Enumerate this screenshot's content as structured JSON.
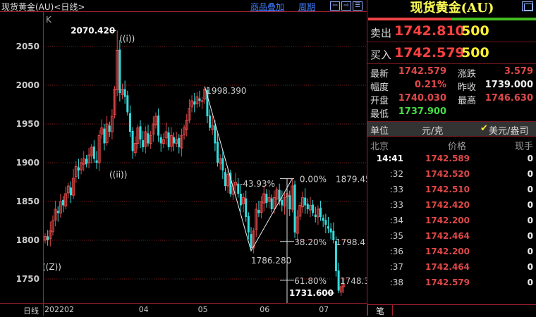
{
  "header": {
    "title": "现货黄金(AU)<日线>",
    "overlay_link": "商品叠加",
    "period_link": "周期",
    "nav_icons": [
      "arrow-left-icon",
      "arrow-right-icon",
      "split-view-icon"
    ]
  },
  "chart_data": {
    "type": "candlestick",
    "indicator_label": "K",
    "yticks": [
      2050,
      2000,
      1950,
      1900,
      1850,
      1800,
      1750
    ],
    "ylim": [
      1722,
      2092
    ],
    "grid": "horizontal dotted",
    "xaxis_label": "日线",
    "xticks": [
      {
        "label": "202202",
        "index": 0
      },
      {
        "label": "04",
        "index": 38
      },
      {
        "label": "05",
        "index": 61
      },
      {
        "label": "06",
        "index": 85
      },
      {
        "label": "07",
        "index": 108
      }
    ],
    "closes": [
      1805,
      1800,
      1812,
      1825,
      1840,
      1835,
      1850,
      1845,
      1860,
      1870,
      1858,
      1880,
      1895,
      1890,
      1900,
      1905,
      1898,
      1910,
      1920,
      1905,
      1900,
      1935,
      1945,
      1925,
      1950,
      1940,
      1960,
      1995,
      2045,
      1990,
      1995,
      1985,
      1965,
      1940,
      1915,
      1925,
      1945,
      1930,
      1920,
      1940,
      1925,
      1935,
      1950,
      1960,
      1935,
      1925,
      1930,
      1940,
      1920,
      1935,
      1925,
      1930,
      1920,
      1935,
      1945,
      1955,
      1970,
      1980,
      1975,
      1985,
      1980,
      1980,
      1995,
      1960,
      1945,
      1948,
      1925,
      1900,
      1905,
      1890,
      1870,
      1885,
      1860,
      1870,
      1875,
      1860,
      1845,
      1855,
      1830,
      1810,
      1790,
      1812,
      1840,
      1835,
      1850,
      1860,
      1848,
      1855,
      1840,
      1855,
      1865,
      1850,
      1845,
      1855,
      1860,
      1840,
      1870,
      1810,
      1830,
      1845,
      1855,
      1845,
      1840,
      1845,
      1835,
      1830,
      1840,
      1830,
      1825,
      1820,
      1815,
      1810,
      1800,
      1760,
      1735,
      1740,
      1743
    ],
    "up_color": "#e04848",
    "down_color": "#33dddd",
    "annotations": {
      "high": {
        "label": "2070.420",
        "value": 2070.42,
        "index": 28
      },
      "wave_i": "((i))",
      "wave_ii": "((ii))",
      "wave_z": "((Z))",
      "swing_high": {
        "label": "1998.390",
        "value": 1998.39,
        "index": 62
      },
      "swing_low": {
        "label": "1786.280",
        "value": 1786.28,
        "index": 80
      },
      "fib_top": {
        "value": 1879.45,
        "index": 96
      },
      "low": {
        "label": "1731.600",
        "value": 1731.6,
        "index": 114
      },
      "retrace_pct": "-43.93%",
      "fib_levels": [
        {
          "pct": "0.00%",
          "price": "1879.45",
          "value": 1879.45
        },
        {
          "pct": "38.20%",
          "price": "1798.4",
          "value": 1798.4
        },
        {
          "pct": "61.80%",
          "price": "1748.3",
          "value": 1748.3
        }
      ]
    }
  },
  "quote": {
    "name": "现货黄金(AU)",
    "buy_ratio": 0.5,
    "ask": {
      "label": "卖出",
      "price": "1742.810",
      "volume": "500"
    },
    "bid": {
      "label": "买入",
      "price": "1742.579",
      "volume": "500"
    },
    "stats": [
      {
        "l1": "最新",
        "v1": "1742.579",
        "c1": "red",
        "l2": "涨跌",
        "v2": "3.579",
        "c2": "red"
      },
      {
        "l1": "幅度",
        "v1": "0.21%",
        "c1": "red",
        "l2": "昨收",
        "v2": "1739.000",
        "c2": "wht"
      },
      {
        "l1": "开盘",
        "v1": "1740.030",
        "c1": "red",
        "l2": "最高",
        "v2": "1746.630",
        "c2": "red"
      },
      {
        "l1": "最低",
        "v1": "1737.900",
        "c1": "grn",
        "l2": "",
        "v2": "",
        "c2": "wht"
      }
    ],
    "unit": {
      "label": "单位",
      "cny": "元/克",
      "usd": "美元/盎司",
      "check": "✔"
    },
    "ticks_header": {
      "time": "北京",
      "price": "价格",
      "vol": "现手"
    },
    "ticks": [
      {
        "t": "14:41",
        "p": "1742.589",
        "v": "0"
      },
      {
        "t": ":32",
        "p": "1742.520",
        "v": "0"
      },
      {
        "t": ":33",
        "p": "1742.510",
        "v": "0"
      },
      {
        "t": ":33",
        "p": "1742.420",
        "v": "0"
      },
      {
        "t": ":34",
        "p": "1742.200",
        "v": "0"
      },
      {
        "t": ":35",
        "p": "1742.464",
        "v": "0"
      },
      {
        "t": ":36",
        "p": "1742.200",
        "v": "0"
      },
      {
        "t": ":37",
        "p": "1742.464",
        "v": "0"
      },
      {
        "t": ":38",
        "p": "1742.579",
        "v": "0"
      }
    ],
    "tab": "笔"
  }
}
